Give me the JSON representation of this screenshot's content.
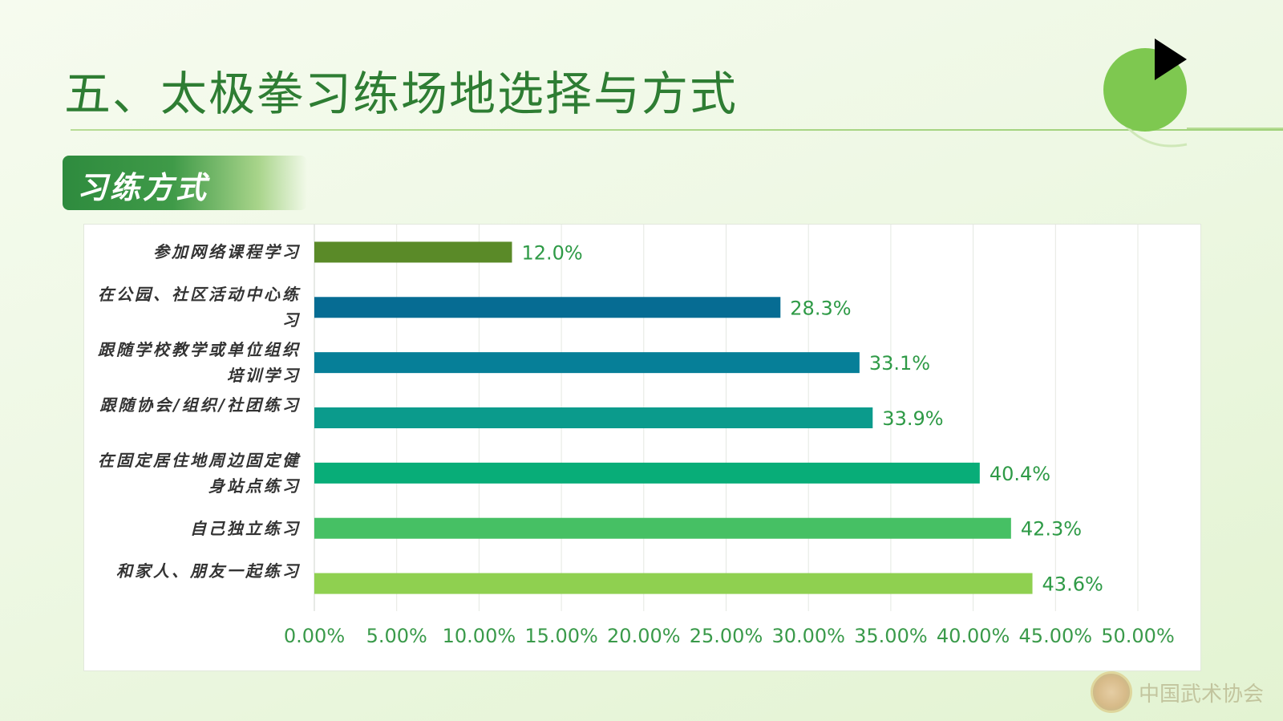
{
  "page": {
    "title": "五、太极拳习练场地选择与方式"
  },
  "section": {
    "badge": "习练方式"
  },
  "watermark": {
    "text": "中国武术协会"
  },
  "colors": {
    "title": "#2e7d33",
    "axis_label": "#3a9a4a",
    "value_label": "#2e9a46",
    "bars": [
      "#5a8a28",
      "#066c93",
      "#067f98",
      "#0b9b8c",
      "#08ad78",
      "#46c064",
      "#8fd050"
    ]
  },
  "chart_data": {
    "type": "bar",
    "orientation": "horizontal",
    "categories": [
      "参加网络课程学习",
      "在公园、社区活动中心练习",
      "跟随学校教学或单位组织培训学习",
      "跟随协会/组织/社团练习",
      "在固定居住地周边固定健身站点练习",
      "自己独立练习",
      "和家人、朋友一起练习"
    ],
    "values": [
      12.0,
      28.3,
      33.1,
      33.9,
      40.4,
      42.3,
      43.6
    ],
    "value_labels": [
      "12.0%",
      "28.3%",
      "33.1%",
      "33.9%",
      "40.4%",
      "42.3%",
      "43.6%"
    ],
    "xlim": [
      0,
      50
    ],
    "x_ticks": [
      "0.00%",
      "5.00%",
      "10.00%",
      "15.00%",
      "20.00%",
      "25.00%",
      "30.00%",
      "35.00%",
      "40.00%",
      "45.00%",
      "50.00%"
    ],
    "grid": true,
    "legend": "none"
  }
}
